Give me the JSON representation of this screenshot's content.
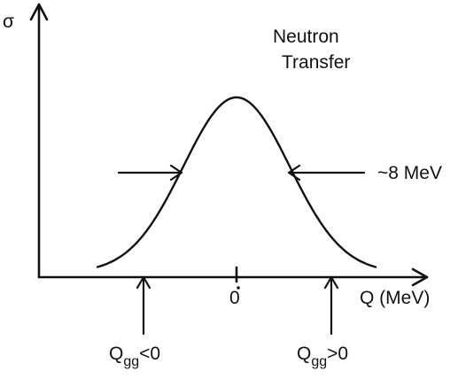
{
  "labels": {
    "y_axis": "σ",
    "x_axis": "Q (MeV)",
    "title_line1": "Neutron",
    "title_line2": "Transfer",
    "width": "~8 MeV",
    "origin": "0",
    "q_left_base": "Q",
    "q_left_sub": "gg",
    "q_left_rel": "<0",
    "q_right_base": "Q",
    "q_right_sub": "gg",
    "q_right_rel": ">0"
  },
  "colors": {
    "ink": "#111111",
    "background": "#ffffff"
  }
}
